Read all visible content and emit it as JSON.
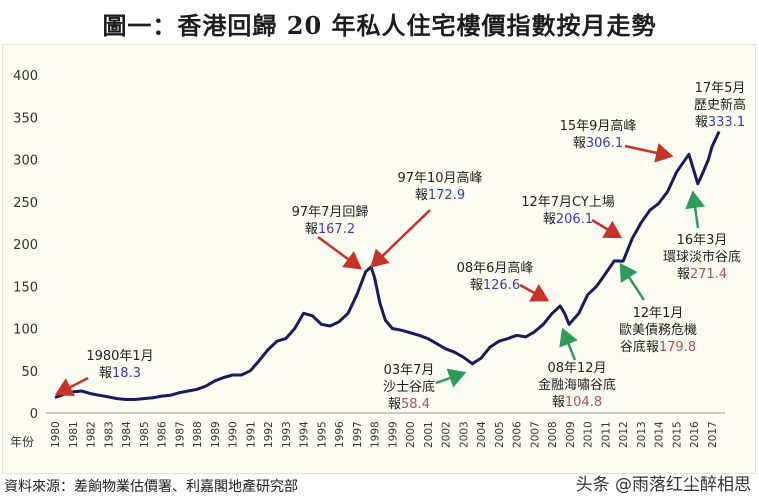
{
  "title": "圖一：香港回歸 20 年私人住宅樓價指數按月走勢",
  "source": "資料來源：差餉物業估價署、利嘉閣地產研究部",
  "watermark": "头条 @雨落红尘醉相思",
  "colors": {
    "line": "#1a1a5c",
    "peak_arrow": "#c8322b",
    "trough_arrow": "#2e9a5c",
    "peak_value": "#3c3cb4",
    "trough_value": "#b05050"
  },
  "chart_data": {
    "type": "line",
    "title": "圖一：香港回歸 20 年私人住宅樓價指數按月走勢",
    "xlabel": "年份",
    "ylabel": "",
    "ylim": [
      0,
      400
    ],
    "yticks": [
      0,
      50,
      100,
      150,
      200,
      250,
      300,
      350,
      400
    ],
    "xticks": [
      "1980",
      "1981",
      "1982",
      "1983",
      "1984",
      "1985",
      "1986",
      "1987",
      "1988",
      "1989",
      "1990",
      "1991",
      "1992",
      "1993",
      "1994",
      "1995",
      "1996",
      "1997",
      "1998",
      "1999",
      "2000",
      "2001",
      "2002",
      "2003",
      "2004",
      "2005",
      "2006",
      "2007",
      "2008",
      "2009",
      "2010",
      "2011",
      "2012",
      "2013",
      "2014",
      "2015",
      "2016",
      "2017"
    ],
    "grid": false,
    "x": [
      1980.0,
      1980.5,
      1981.0,
      1981.5,
      1982.0,
      1982.5,
      1983.0,
      1983.5,
      1984.0,
      1984.5,
      1985.0,
      1985.5,
      1986.0,
      1986.5,
      1987.0,
      1987.5,
      1988.0,
      1988.5,
      1989.0,
      1989.5,
      1990.0,
      1990.5,
      1991.0,
      1991.5,
      1992.0,
      1992.5,
      1993.0,
      1993.5,
      1994.0,
      1994.5,
      1995.0,
      1995.5,
      1996.0,
      1996.5,
      1997.0,
      1997.5,
      1997.8,
      1998.0,
      1998.3,
      1998.6,
      1999.0,
      1999.5,
      2000.0,
      2000.5,
      2001.0,
      2001.5,
      2002.0,
      2002.5,
      2003.0,
      2003.5,
      2004.0,
      2004.5,
      2005.0,
      2005.5,
      2006.0,
      2006.5,
      2007.0,
      2007.5,
      2008.0,
      2008.45,
      2008.7,
      2008.95,
      2009.5,
      2010.0,
      2010.5,
      2011.0,
      2011.5,
      2012.0,
      2012.5,
      2013.0,
      2013.5,
      2014.0,
      2014.5,
      2015.0,
      2015.7,
      2016.2,
      2016.5,
      2016.8,
      2017.0,
      2017.4
    ],
    "values": [
      18.3,
      22,
      25,
      26,
      23,
      21,
      19,
      17,
      16,
      16,
      17,
      18,
      20,
      21,
      24,
      26,
      28,
      32,
      38,
      42,
      45,
      45,
      50,
      62,
      75,
      85,
      88,
      100,
      118,
      115,
      105,
      103,
      108,
      118,
      140,
      167.2,
      172.9,
      160,
      130,
      110,
      100,
      98,
      95,
      92,
      88,
      82,
      76,
      72,
      66,
      58.4,
      65,
      78,
      85,
      88,
      92,
      90,
      96,
      105,
      118,
      126.6,
      118,
      104.8,
      118,
      140,
      150,
      165,
      180,
      179.8,
      206.1,
      225,
      240,
      248,
      262,
      285,
      306.1,
      271.4,
      285,
      300,
      315,
      333.1
    ],
    "annotations": [
      {
        "lines": [
          "1980年1月"
        ],
        "prefix": "報",
        "value": "18.3",
        "kind": "peak"
      },
      {
        "lines": [
          "97年7月回歸"
        ],
        "prefix": "報",
        "value": "167.2",
        "kind": "peak"
      },
      {
        "lines": [
          "97年10月高峰"
        ],
        "prefix": "報",
        "value": "172.9",
        "kind": "peak"
      },
      {
        "lines": [
          "03年7月",
          "沙士谷底"
        ],
        "prefix": "報",
        "value": "58.4",
        "kind": "trough"
      },
      {
        "lines": [
          "08年6月高峰"
        ],
        "prefix": "報",
        "value": "126.6",
        "kind": "peak"
      },
      {
        "lines": [
          "08年12月",
          "金融海嘯谷底"
        ],
        "prefix": "報",
        "value": "104.8",
        "kind": "trough"
      },
      {
        "lines": [
          "12年1月",
          "歐美債務危機"
        ],
        "prefix": "谷底報",
        "value": "179.8",
        "kind": "trough"
      },
      {
        "lines": [
          "12年7月CY上場"
        ],
        "prefix": "報",
        "value": "206.1",
        "kind": "peak"
      },
      {
        "lines": [
          "15年9月高峰"
        ],
        "prefix": "報",
        "value": "306.1",
        "kind": "peak"
      },
      {
        "lines": [
          "16年3月",
          "環球淡市谷底"
        ],
        "prefix": "報",
        "value": "271.4",
        "kind": "trough"
      },
      {
        "lines": [
          "17年5月",
          "歷史新高"
        ],
        "prefix": "報",
        "value": "333.1",
        "kind": "peak"
      }
    ]
  }
}
